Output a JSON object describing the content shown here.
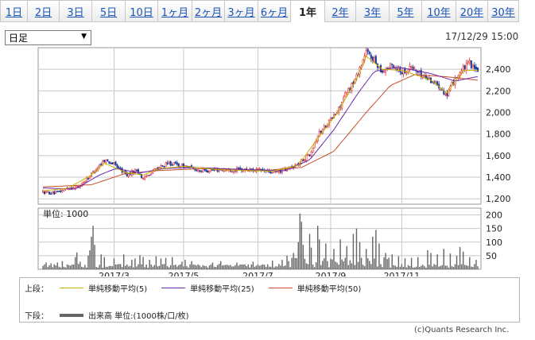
{
  "tabs": [
    {
      "label": "1日",
      "active": false
    },
    {
      "label": "2日",
      "active": false
    },
    {
      "label": "3日",
      "active": false
    },
    {
      "label": "5日",
      "active": false
    },
    {
      "label": "10日",
      "active": false
    },
    {
      "label": "1ヶ月",
      "active": false
    },
    {
      "label": "2ヶ月",
      "active": false
    },
    {
      "label": "3ヶ月",
      "active": false
    },
    {
      "label": "6ヶ月",
      "active": false
    },
    {
      "label": "1年",
      "active": true
    },
    {
      "label": "2年",
      "active": false
    },
    {
      "label": "3年",
      "active": false
    },
    {
      "label": "5年",
      "active": false
    },
    {
      "label": "10年",
      "active": false
    },
    {
      "label": "20年",
      "active": false
    },
    {
      "label": "30年",
      "active": false
    }
  ],
  "bar_select": {
    "value": "日足"
  },
  "timestamp": "17/12/29 15:00",
  "legend": {
    "upper_prefix": "上段：",
    "lower_prefix": "下段：",
    "ma5": "単純移動平均(5)",
    "ma25": "単純移動平均(25)",
    "ma50": "単純移動平均(50)",
    "volume": "出来高 単位:(1000株/口/枚)"
  },
  "copyright": "(c)Quants Research Inc.",
  "colors": {
    "up": "#e03030",
    "down": "#1e3a9e",
    "ma5": "#c8b400",
    "ma25": "#6a2ab0",
    "ma50": "#c8502a",
    "volume": "#666666",
    "grid": "#c8c8c8"
  },
  "chart_data": [
    {
      "type": "candlestick",
      "x_ticks": [
        "2017/3",
        "2017/5",
        "2017/7",
        "2017/9",
        "2017/11"
      ],
      "ylim": [
        1150,
        2600
      ],
      "y_ticks": [
        1200,
        1400,
        1600,
        1800,
        2000,
        2200,
        2400
      ],
      "anchors": [
        [
          0,
          1262
        ],
        [
          8,
          1250
        ],
        [
          15,
          1300
        ],
        [
          22,
          1310
        ],
        [
          30,
          1430
        ],
        [
          38,
          1560
        ],
        [
          44,
          1520
        ],
        [
          52,
          1420
        ],
        [
          58,
          1470
        ],
        [
          62,
          1380
        ],
        [
          67,
          1450
        ],
        [
          72,
          1490
        ],
        [
          78,
          1530
        ],
        [
          88,
          1500
        ],
        [
          98,
          1460
        ],
        [
          110,
          1470
        ],
        [
          125,
          1470
        ],
        [
          135,
          1465
        ],
        [
          142,
          1440
        ],
        [
          150,
          1470
        ],
        [
          158,
          1520
        ],
        [
          165,
          1620
        ],
        [
          170,
          1790
        ],
        [
          176,
          1900
        ],
        [
          182,
          2000
        ],
        [
          187,
          2160
        ],
        [
          193,
          2300
        ],
        [
          200,
          2560
        ],
        [
          204,
          2500
        ],
        [
          210,
          2380
        ],
        [
          216,
          2440
        ],
        [
          222,
          2380
        ],
        [
          228,
          2420
        ],
        [
          234,
          2350
        ],
        [
          240,
          2300
        ],
        [
          246,
          2240
        ],
        [
          250,
          2150
        ],
        [
          255,
          2320
        ],
        [
          260,
          2400
        ],
        [
          264,
          2460
        ],
        [
          268,
          2380
        ]
      ],
      "ma5": [
        [
          0,
          1275
        ],
        [
          15,
          1295
        ],
        [
          30,
          1420
        ],
        [
          38,
          1530
        ],
        [
          52,
          1440
        ],
        [
          62,
          1420
        ],
        [
          72,
          1480
        ],
        [
          88,
          1500
        ],
        [
          110,
          1468
        ],
        [
          142,
          1455
        ],
        [
          158,
          1510
        ],
        [
          170,
          1760
        ],
        [
          182,
          1990
        ],
        [
          193,
          2280
        ],
        [
          200,
          2520
        ],
        [
          210,
          2400
        ],
        [
          222,
          2390
        ],
        [
          240,
          2300
        ],
        [
          250,
          2180
        ],
        [
          260,
          2390
        ],
        [
          268,
          2390
        ]
      ],
      "ma25": [
        [
          0,
          1300
        ],
        [
          20,
          1290
        ],
        [
          35,
          1420
        ],
        [
          45,
          1480
        ],
        [
          60,
          1440
        ],
        [
          75,
          1480
        ],
        [
          95,
          1490
        ],
        [
          125,
          1470
        ],
        [
          150,
          1460
        ],
        [
          165,
          1560
        ],
        [
          180,
          1840
        ],
        [
          195,
          2180
        ],
        [
          205,
          2380
        ],
        [
          220,
          2420
        ],
        [
          240,
          2360
        ],
        [
          255,
          2290
        ],
        [
          268,
          2330
        ]
      ],
      "ma50": [
        [
          0,
          1310
        ],
        [
          30,
          1330
        ],
        [
          50,
          1430
        ],
        [
          70,
          1460
        ],
        [
          100,
          1480
        ],
        [
          140,
          1465
        ],
        [
          160,
          1490
        ],
        [
          180,
          1640
        ],
        [
          200,
          2000
        ],
        [
          215,
          2250
        ],
        [
          230,
          2350
        ],
        [
          250,
          2330
        ],
        [
          268,
          2300
        ]
      ]
    },
    {
      "type": "bar",
      "ylabel": "単位: 1000",
      "ylim": [
        0,
        225
      ],
      "y_ticks": [
        50,
        100,
        150,
        200
      ],
      "spikes": [
        [
          1,
          18
        ],
        [
          2,
          25
        ],
        [
          5,
          22
        ],
        [
          9,
          25
        ],
        [
          12,
          30
        ],
        [
          20,
          45
        ],
        [
          21,
          62
        ],
        [
          23,
          28
        ],
        [
          28,
          50
        ],
        [
          29,
          70
        ],
        [
          30,
          120
        ],
        [
          31,
          160
        ],
        [
          32,
          90
        ],
        [
          36,
          55
        ],
        [
          38,
          45
        ],
        [
          44,
          40
        ],
        [
          50,
          55
        ],
        [
          55,
          35
        ],
        [
          57,
          40
        ],
        [
          60,
          52
        ],
        [
          62,
          45
        ],
        [
          66,
          35
        ],
        [
          70,
          48
        ],
        [
          73,
          40
        ],
        [
          76,
          42
        ],
        [
          80,
          45
        ],
        [
          86,
          28
        ],
        [
          88,
          35
        ],
        [
          92,
          30
        ],
        [
          105,
          25
        ],
        [
          110,
          30
        ],
        [
          120,
          25
        ],
        [
          130,
          28
        ],
        [
          142,
          32
        ],
        [
          148,
          35
        ],
        [
          151,
          50
        ],
        [
          155,
          60
        ],
        [
          158,
          100
        ],
        [
          159,
          205
        ],
        [
          160,
          175
        ],
        [
          161,
          90
        ],
        [
          165,
          130
        ],
        [
          166,
          80
        ],
        [
          170,
          160
        ],
        [
          171,
          110
        ],
        [
          175,
          95
        ],
        [
          180,
          75
        ],
        [
          184,
          110
        ],
        [
          188,
          85
        ],
        [
          192,
          130
        ],
        [
          194,
          150
        ],
        [
          196,
          100
        ],
        [
          200,
          75
        ],
        [
          204,
          120
        ],
        [
          206,
          145
        ],
        [
          208,
          95
        ],
        [
          212,
          60
        ],
        [
          216,
          55
        ],
        [
          220,
          48
        ],
        [
          224,
          40
        ],
        [
          228,
          42
        ],
        [
          232,
          45
        ],
        [
          238,
          70
        ],
        [
          240,
          60
        ],
        [
          244,
          55
        ],
        [
          248,
          75
        ],
        [
          252,
          58
        ],
        [
          256,
          50
        ],
        [
          258,
          82
        ],
        [
          260,
          65
        ],
        [
          264,
          45
        ],
        [
          268,
          35
        ]
      ]
    }
  ]
}
